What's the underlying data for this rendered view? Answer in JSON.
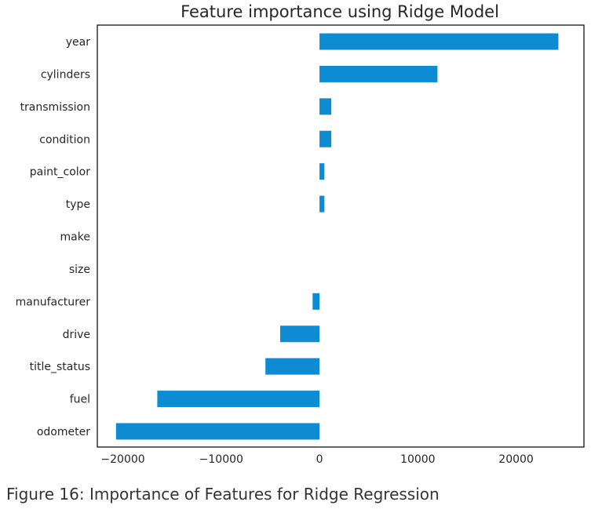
{
  "chart_data": {
    "type": "bar",
    "orientation": "horizontal",
    "title": "Feature importance using Ridge Model",
    "xlabel": "",
    "ylabel": "",
    "categories": [
      "year",
      "cylinders",
      "transmission",
      "condition",
      "paint_color",
      "type",
      "make",
      "size",
      "manufacturer",
      "drive",
      "title_status",
      "fuel",
      "odometer"
    ],
    "values": [
      24300,
      12000,
      1200,
      1200,
      500,
      500,
      0,
      0,
      -700,
      -4000,
      -5500,
      -16500,
      -20700
    ],
    "xlim": [
      -22600,
      26900
    ],
    "xticks": [
      -20000,
      -10000,
      0,
      10000,
      20000
    ],
    "xtick_labels": [
      "−20000",
      "−10000",
      "0",
      "10000",
      "20000"
    ],
    "grid": false,
    "legend": "none",
    "bar_color": "#0d8cd4"
  },
  "caption": "Figure 16: Importance of Features for Ridge Regression"
}
